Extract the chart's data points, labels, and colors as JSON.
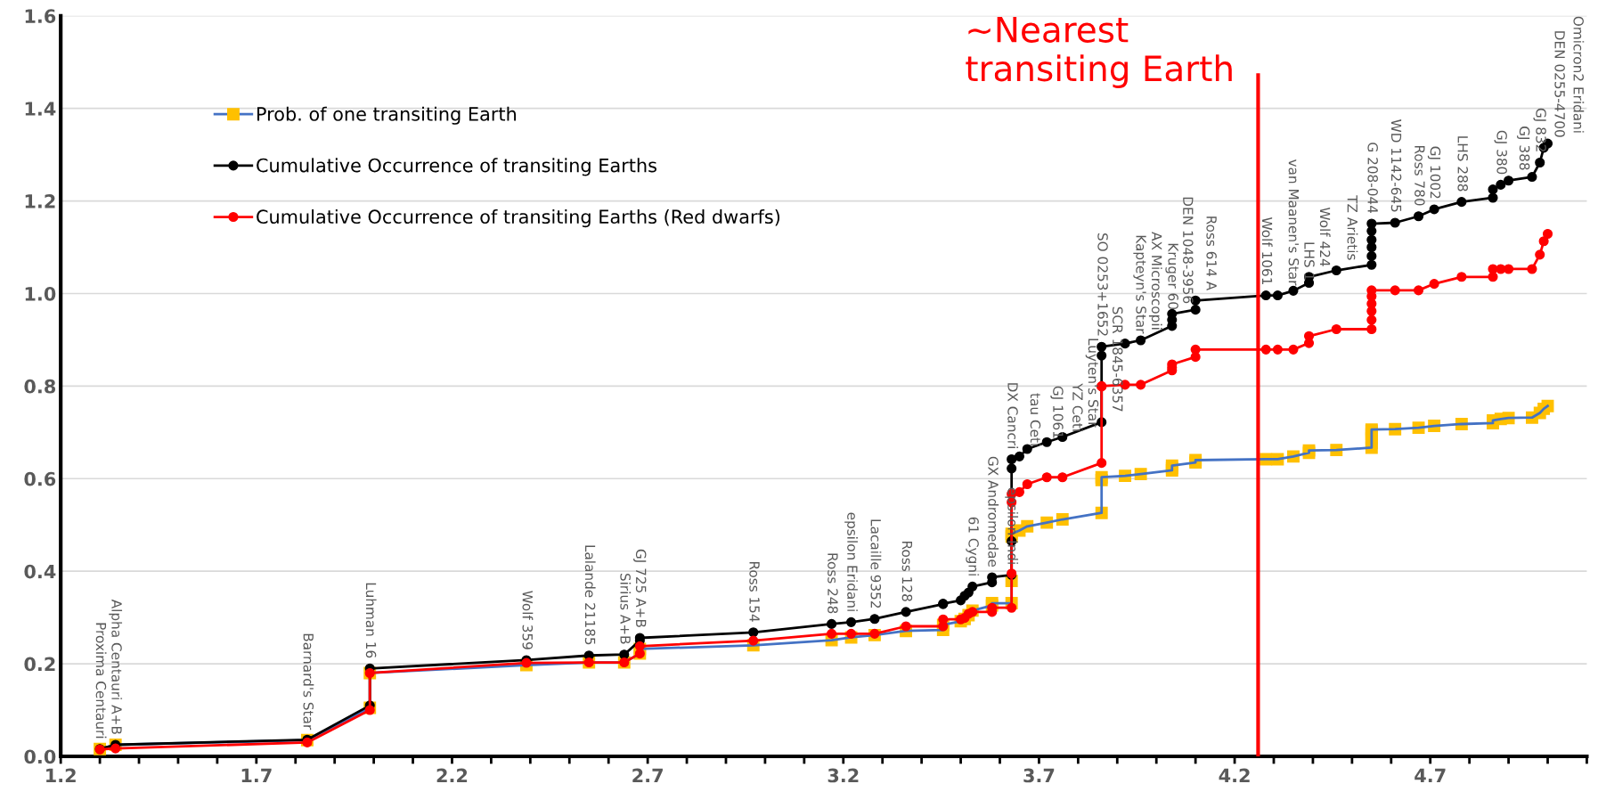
{
  "chart_data": {
    "type": "line",
    "x": [
      1.3,
      1.34,
      1.83,
      1.99,
      1.99,
      2.39,
      2.55,
      2.64,
      2.68,
      2.68,
      2.97,
      3.17,
      3.22,
      3.28,
      3.36,
      3.455,
      3.455,
      3.5,
      3.51,
      3.52,
      3.53,
      3.58,
      3.58,
      3.63,
      3.63,
      3.63,
      3.63,
      3.65,
      3.67,
      3.72,
      3.76,
      3.86,
      3.86,
      3.86,
      3.92,
      3.96,
      4.04,
      4.04,
      4.04,
      4.1,
      4.1,
      4.28,
      4.31,
      4.35,
      4.39,
      4.39,
      4.46,
      4.55,
      4.55,
      4.55,
      4.55,
      4.55,
      4.55,
      4.61,
      4.67,
      4.71,
      4.78,
      4.86,
      4.86,
      4.88,
      4.9,
      4.96,
      4.98,
      4.99,
      5.0
    ],
    "series": [
      {
        "name": "Prob. of one transiting Earth",
        "color": "#ffc000",
        "marker": "square",
        "values": [
          0.016,
          0.025,
          0.035,
          0.105,
          0.18,
          0.197,
          0.203,
          0.203,
          0.222,
          0.232,
          0.24,
          0.251,
          0.257,
          0.262,
          0.271,
          0.273,
          0.284,
          0.292,
          0.297,
          0.305,
          0.315,
          0.326,
          0.331,
          0.331,
          0.379,
          0.475,
          0.481,
          0.488,
          0.497,
          0.505,
          0.512,
          0.526,
          0.597,
          0.603,
          0.606,
          0.61,
          0.618,
          0.623,
          0.628,
          0.635,
          0.64,
          0.642,
          0.642,
          0.648,
          0.656,
          0.661,
          0.662,
          0.667,
          0.677,
          0.687,
          0.696,
          0.703,
          0.706,
          0.707,
          0.71,
          0.714,
          0.718,
          0.72,
          0.726,
          0.729,
          0.731,
          0.732,
          0.742,
          0.751,
          0.757
        ]
      },
      {
        "name": "Cumulative Occurrence of transiting Earths",
        "color": "#000000",
        "marker": "circle",
        "values": [
          0.016,
          0.025,
          0.036,
          0.11,
          0.19,
          0.208,
          0.218,
          0.22,
          0.25,
          0.256,
          0.268,
          0.286,
          0.29,
          0.297,
          0.312,
          0.329,
          0.33,
          0.337,
          0.347,
          0.354,
          0.367,
          0.376,
          0.387,
          0.392,
          0.465,
          0.622,
          0.642,
          0.648,
          0.664,
          0.679,
          0.69,
          0.722,
          0.866,
          0.885,
          0.892,
          0.899,
          0.93,
          0.943,
          0.956,
          0.965,
          0.985,
          0.996,
          0.996,
          1.006,
          1.023,
          1.036,
          1.05,
          1.062,
          1.081,
          1.1,
          1.116,
          1.135,
          1.151,
          1.153,
          1.167,
          1.182,
          1.198,
          1.207,
          1.225,
          1.235,
          1.244,
          1.252,
          1.283,
          1.315,
          1.324
        ]
      },
      {
        "name": "Cumulative Occurrence of transiting Earths (Red dwarfs)",
        "color": "#ff0000",
        "marker": "circle",
        "values": [
          0.015,
          0.017,
          0.03,
          0.1,
          0.18,
          0.202,
          0.203,
          0.203,
          0.222,
          0.238,
          0.25,
          0.265,
          0.265,
          0.265,
          0.281,
          0.281,
          0.296,
          0.296,
          0.299,
          0.308,
          0.312,
          0.312,
          0.321,
          0.321,
          0.395,
          0.549,
          0.567,
          0.571,
          0.588,
          0.603,
          0.603,
          0.634,
          0.799,
          0.8,
          0.803,
          0.803,
          0.834,
          0.84,
          0.847,
          0.863,
          0.879,
          0.879,
          0.879,
          0.879,
          0.893,
          0.908,
          0.923,
          0.923,
          0.943,
          0.962,
          0.978,
          0.994,
          1.007,
          1.007,
          1.007,
          1.021,
          1.036,
          1.036,
          1.053,
          1.053,
          1.053,
          1.053,
          1.084,
          1.113,
          1.129
        ]
      }
    ],
    "xlim": [
      1.2,
      5.1
    ],
    "xticks": [
      1.2,
      {
        "value": 1.3,
        "label": null
      },
      {
        "value": 1.4,
        "label": null
      },
      {
        "value": 1.5,
        "label": null
      },
      {
        "value": 1.6,
        "label": null
      },
      1.7,
      {
        "value": 1.8,
        "label": null
      },
      {
        "value": 1.9,
        "label": null
      },
      {
        "value": 2.0,
        "label": null
      },
      {
        "value": 2.1,
        "label": null
      },
      2.2,
      {
        "value": 2.3,
        "label": null
      },
      {
        "value": 2.4,
        "label": null
      },
      {
        "value": 2.5,
        "label": null
      },
      {
        "value": 2.6,
        "label": null
      },
      2.7,
      {
        "value": 2.8,
        "label": null
      },
      {
        "value": 2.9,
        "label": null
      },
      {
        "value": 3.0,
        "label": null
      },
      {
        "value": 3.1,
        "label": null
      },
      3.2,
      {
        "value": 3.3,
        "label": null
      },
      {
        "value": 3.4,
        "label": null
      },
      {
        "value": 3.5,
        "label": null
      },
      {
        "value": 3.6,
        "label": null
      },
      3.7,
      {
        "value": 3.8,
        "label": null
      },
      {
        "value": 3.9,
        "label": null
      },
      {
        "value": 4.0,
        "label": null
      },
      {
        "value": 4.1,
        "label": null
      },
      4.2,
      {
        "value": 4.3,
        "label": null
      },
      {
        "value": 4.4,
        "label": null
      },
      {
        "value": 4.5,
        "label": null
      },
      {
        "value": 4.6,
        "label": null
      },
      4.7,
      {
        "value": 4.8,
        "label": null
      },
      {
        "value": 4.9,
        "label": null
      },
      {
        "value": 5.0,
        "label": null
      },
      {
        "value": 5.1,
        "label": null
      }
    ],
    "ylim": [
      0,
      1.6
    ],
    "yticks": [
      {
        "value": 0,
        "label": "0.0"
      },
      0.2,
      0.4,
      0.6,
      0.8,
      {
        "value": 1,
        "label": "1.0"
      },
      1.2,
      1.4,
      1.6
    ],
    "grid": "y",
    "legend": "top left",
    "ref_lines": [
      {
        "axis": "x",
        "value": 4.26,
        "label": "~Nearest\ntransiting Earth",
        "color": "#ff0000"
      }
    ],
    "annotations": [
      {
        "text": "Proxima Centauri",
        "x": 1.3,
        "y": 0.016
      },
      {
        "text": "Alpha Centauri A+B",
        "x": 1.34,
        "y": 0.025
      },
      {
        "text": "Barnard's Star",
        "x": 1.83,
        "y": 0.036
      },
      {
        "text": "Luhman 16",
        "x": 1.99,
        "y": 0.19
      },
      {
        "text": "Wolf 359",
        "x": 2.39,
        "y": 0.208
      },
      {
        "text": "Lalande 21185",
        "x": 2.55,
        "y": 0.218
      },
      {
        "text": "Sirius A+B",
        "x": 2.64,
        "y": 0.22
      },
      {
        "text": "GJ 725 A+B",
        "x": 2.68,
        "y": 0.256
      },
      {
        "text": "Ross 154",
        "x": 2.97,
        "y": 0.268
      },
      {
        "text": "Ross 248",
        "x": 3.17,
        "y": 0.286
      },
      {
        "text": "epsilon Eridani",
        "x": 3.22,
        "y": 0.29
      },
      {
        "text": "Lacaille 9352",
        "x": 3.28,
        "y": 0.297
      },
      {
        "text": "Ross 128",
        "x": 3.36,
        "y": 0.312
      },
      {
        "text": "61 Cygni",
        "x": 3.53,
        "y": 0.367
      },
      {
        "text": "GX Andromedae",
        "x": 3.58,
        "y": 0.387
      },
      {
        "text": "epsilon Indi",
        "x": 3.63,
        "y": 0.392
      },
      {
        "text": "DX Cancri",
        "x": 3.63,
        "y": 0.642
      },
      {
        "text": "tau Ceti",
        "x": 3.65,
        "y": 0.648
      },
      {
        "text": "GJ 1061",
        "x": 3.67,
        "y": 0.664
      },
      {
        "text": "YZ Ceti",
        "x": 3.72,
        "y": 0.679
      },
      {
        "text": "Luyten's Star",
        "x": 3.76,
        "y": 0.69
      },
      {
        "text": "SCR 1845-6357",
        "x": 3.86,
        "y": 0.722
      },
      {
        "text": "SO 0253+1652",
        "x": 3.86,
        "y": 0.885
      },
      {
        "text": "Kapteyn's Star",
        "x": 3.92,
        "y": 0.892
      },
      {
        "text": "AX Microscopii",
        "x": 3.96,
        "y": 0.899
      },
      {
        "text": "Kruger 60",
        "x": 4.04,
        "y": 0.943
      },
      {
        "text": "DEN 1048-3956",
        "x": 4.04,
        "y": 0.956
      },
      {
        "text": "Ross 614 A",
        "x": 4.1,
        "y": 0.985
      },
      {
        "text": "Wolf 1061",
        "x": 4.28,
        "y": 0.996
      },
      {
        "text": "van Maanen's Star",
        "x": 4.31,
        "y": 0.996
      },
      {
        "text": "LHS 1",
        "x": 4.35,
        "y": 1.006
      },
      {
        "text": "Wolf 424",
        "x": 4.39,
        "y": 1.036
      },
      {
        "text": "TZ Arietis",
        "x": 4.46,
        "y": 1.05
      },
      {
        "text": "G 208-044",
        "x": 4.55,
        "y": 1.151
      },
      {
        "text": "WD 1142-645",
        "x": 4.61,
        "y": 1.153
      },
      {
        "text": "Ross 780",
        "x": 4.67,
        "y": 1.167
      },
      {
        "text": "GJ 1002",
        "x": 4.71,
        "y": 1.182
      },
      {
        "text": "LHS 288",
        "x": 4.78,
        "y": 1.198
      },
      {
        "text": "GJ 380",
        "x": 4.88,
        "y": 1.235
      },
      {
        "text": "GJ 388",
        "x": 4.9,
        "y": 1.244
      },
      {
        "text": "GJ 832",
        "x": 4.98,
        "y": 1.283
      },
      {
        "text": "DEN 0255-4700",
        "x": 4.99,
        "y": 1.315
      },
      {
        "text": "Omicron2 Eridani",
        "x": 5.0,
        "y": 1.324
      }
    ]
  }
}
